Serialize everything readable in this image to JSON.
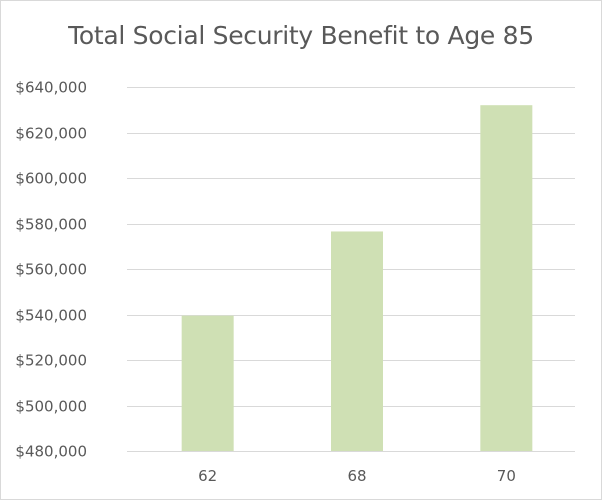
{
  "chart_data": {
    "type": "bar",
    "title": "Total Social Security Benefit to Age 85",
    "xlabel": "",
    "ylabel": "",
    "categories": [
      "62",
      "68",
      "70"
    ],
    "values": [
      539500,
      576500,
      632000
    ],
    "ylim": [
      480000,
      640000
    ],
    "yticks": [
      480000,
      500000,
      520000,
      540000,
      560000,
      580000,
      600000,
      620000,
      640000
    ],
    "ytick_labels": [
      "$480,000",
      "$500,000",
      "$520,000",
      "$540,000",
      "$560,000",
      "$580,000",
      "$600,000",
      "$620,000",
      "$640,000"
    ],
    "grid": true,
    "legend": "none",
    "bar_color": "#cfe0b4",
    "grid_color": "#d9d9d9"
  }
}
